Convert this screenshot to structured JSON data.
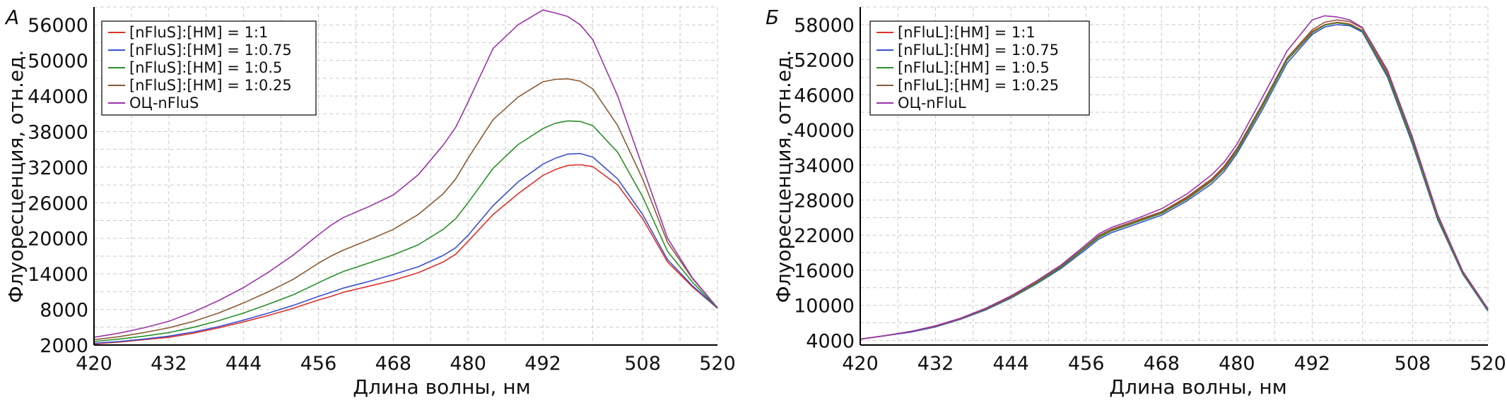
{
  "chart_data": [
    {
      "type": "line",
      "panel_label": "А",
      "xlabel": "Длина волны, нм",
      "ylabel": "Флуоресценция, отн.ед.",
      "xlim": [
        420,
        520
      ],
      "ylim": [
        2000,
        59000
      ],
      "xticks": [
        420,
        432,
        444,
        456,
        468,
        480,
        492,
        508,
        520
      ],
      "yticks": [
        2000,
        8000,
        14000,
        20000,
        26000,
        32000,
        38000,
        44000,
        50000,
        56000
      ],
      "grid": true,
      "legend_position": "top-left",
      "x": [
        420,
        424,
        428,
        432,
        436,
        440,
        444,
        448,
        452,
        456,
        458,
        460,
        464,
        468,
        472,
        476,
        478,
        480,
        484,
        488,
        492,
        494,
        496,
        498,
        500,
        504,
        508,
        512,
        516,
        520
      ],
      "series": [
        {
          "name": "[nFluS]:[HM] = 1:1",
          "color": "#e0302a",
          "values": [
            2200,
            2500,
            2900,
            3300,
            4000,
            4900,
            5900,
            7000,
            8200,
            9600,
            10200,
            10900,
            11900,
            12900,
            14200,
            16000,
            17300,
            19500,
            24000,
            27500,
            30600,
            31600,
            32300,
            32400,
            32100,
            29000,
            23300,
            16000,
            11800,
            8200
          ]
        },
        {
          "name": "[nFluS]:[HM] = 1:0.75",
          "color": "#3a4fd0",
          "values": [
            2300,
            2600,
            3000,
            3500,
            4200,
            5100,
            6200,
            7400,
            8700,
            10200,
            10900,
            11600,
            12700,
            13900,
            15200,
            17100,
            18400,
            20500,
            25500,
            29500,
            32500,
            33500,
            34200,
            34300,
            33700,
            30000,
            24000,
            16400,
            12000,
            8200
          ]
        },
        {
          "name": "[nFluS]:[HM] = 1:0.5",
          "color": "#2a8f2a",
          "values": [
            2600,
            3000,
            3500,
            4100,
            5000,
            6100,
            7400,
            8900,
            10500,
            12500,
            13500,
            14400,
            15800,
            17200,
            18900,
            21500,
            23300,
            26000,
            31800,
            35800,
            38500,
            39400,
            39800,
            39700,
            39000,
            34500,
            27000,
            17800,
            12600,
            8200
          ]
        },
        {
          "name": "[nFluS]:[HM] = 1:0.25",
          "color": "#8a5a34",
          "values": [
            2900,
            3400,
            4100,
            4900,
            6000,
            7400,
            9100,
            11000,
            13100,
            15800,
            17000,
            18000,
            19700,
            21500,
            24000,
            27500,
            30000,
            33500,
            40000,
            43800,
            46400,
            46800,
            46900,
            46500,
            45200,
            39000,
            30000,
            19300,
            13200,
            8300
          ]
        },
        {
          "name": "ОЦ-nFluS",
          "color": "#9a35a8",
          "values": [
            3300,
            4000,
            4900,
            6000,
            7600,
            9500,
            11700,
            14300,
            17200,
            20600,
            22200,
            23500,
            25300,
            27300,
            30700,
            35700,
            38700,
            43000,
            52000,
            56000,
            58500,
            58000,
            57400,
            56000,
            53500,
            44000,
            32000,
            20000,
            13300,
            8300
          ]
        }
      ]
    },
    {
      "type": "line",
      "panel_label": "Б",
      "xlabel": "Длина волны, нм",
      "ylabel": "Флуоресценция, отн.ед.",
      "xlim": [
        420,
        520
      ],
      "ylim": [
        3200,
        61000
      ],
      "xticks": [
        420,
        432,
        444,
        456,
        468,
        480,
        492,
        508,
        520
      ],
      "yticks": [
        4000,
        10000,
        16000,
        22000,
        28000,
        34000,
        40000,
        46000,
        52000,
        58000
      ],
      "grid": true,
      "legend_position": "top-left",
      "x": [
        420,
        424,
        428,
        432,
        436,
        440,
        444,
        448,
        452,
        456,
        458,
        460,
        464,
        468,
        472,
        476,
        478,
        480,
        484,
        488,
        492,
        494,
        496,
        498,
        500,
        504,
        508,
        512,
        516,
        520
      ],
      "series": [
        {
          "name": "[nFluL]:[HM] = 1:1",
          "color": "#e0302a",
          "values": [
            4200,
            4800,
            5500,
            6400,
            7700,
            9400,
            11400,
            13800,
            16600,
            20000,
            21800,
            22900,
            24300,
            25900,
            28300,
            31400,
            33600,
            36500,
            44000,
            52000,
            56800,
            58000,
            58400,
            58100,
            57000,
            49500,
            38000,
            25000,
            15500,
            9200
          ]
        },
        {
          "name": "[nFluL]:[HM] = 1:0.75",
          "color": "#3a4fd0",
          "values": [
            4200,
            4800,
            5400,
            6300,
            7600,
            9200,
            11200,
            13600,
            16300,
            19600,
            21300,
            22400,
            23900,
            25400,
            27800,
            30800,
            32900,
            35900,
            43300,
            51400,
            56300,
            57600,
            58000,
            57800,
            56700,
            49000,
            37500,
            24600,
            15300,
            9000
          ]
        },
        {
          "name": "[nFluL]:[HM] = 1:0.5",
          "color": "#2a8f2a",
          "values": [
            4200,
            4800,
            5500,
            6400,
            7700,
            9300,
            11300,
            13700,
            16500,
            19900,
            21600,
            22700,
            24200,
            25700,
            28100,
            31200,
            33300,
            36300,
            43800,
            51900,
            56600,
            57900,
            58300,
            58000,
            56900,
            49300,
            37800,
            24800,
            15400,
            9100
          ]
        },
        {
          "name": "[nFluL]:[HM] = 1:0.25",
          "color": "#8a5a34",
          "values": [
            4200,
            4800,
            5500,
            6400,
            7700,
            9400,
            11400,
            13900,
            16700,
            20100,
            21900,
            23000,
            24500,
            26000,
            28500,
            31600,
            33800,
            36800,
            44300,
            52300,
            57100,
            58400,
            58800,
            58500,
            57400,
            49900,
            38300,
            25200,
            15600,
            9300
          ]
        },
        {
          "name": "ОЦ-nFluL",
          "color": "#9a35a8",
          "values": [
            4200,
            4800,
            5500,
            6500,
            7800,
            9500,
            11600,
            14100,
            16900,
            20400,
            22200,
            23300,
            24800,
            26500,
            29000,
            32300,
            34500,
            37500,
            45400,
            53500,
            58800,
            59500,
            59300,
            58800,
            57500,
            50200,
            38700,
            25500,
            15800,
            9400
          ]
        }
      ]
    }
  ]
}
